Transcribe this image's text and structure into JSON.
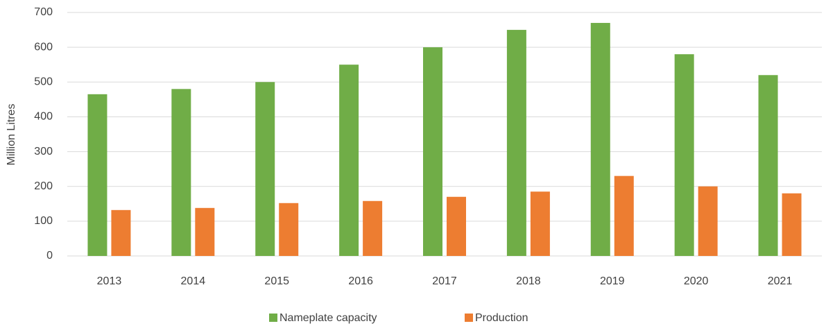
{
  "chart_data": {
    "type": "bar",
    "y_label": "Million Litres",
    "categories": [
      "2013",
      "2014",
      "2015",
      "2016",
      "2017",
      "2018",
      "2019",
      "2020",
      "2021"
    ],
    "series": [
      {
        "name": "Nameplate capacity",
        "color": "#70ad47",
        "values": [
          465,
          480,
          500,
          550,
          600,
          650,
          670,
          580,
          520
        ]
      },
      {
        "name": "Production",
        "color": "#ed7d31",
        "values": [
          132,
          138,
          152,
          158,
          170,
          185,
          230,
          200,
          180
        ]
      }
    ],
    "ylim": [
      0,
      700
    ],
    "yticks": [
      0,
      100,
      200,
      300,
      400,
      500,
      600,
      700
    ],
    "grid": true,
    "legend": "bottom"
  }
}
